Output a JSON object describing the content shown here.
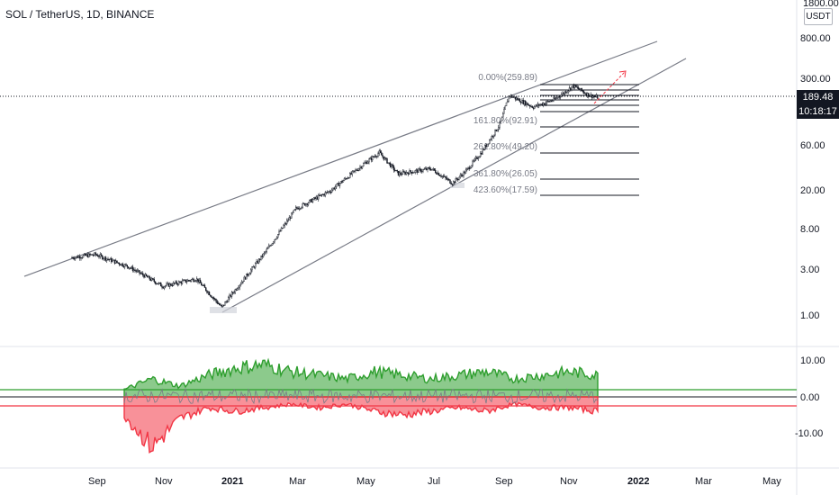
{
  "header": {
    "title": "SOL / TetherUS, 1D, BINANCE",
    "currency": "USDT"
  },
  "price_axis": {
    "top_label": "1800.00",
    "labels": [
      "800.00",
      "300.00",
      "60.00",
      "20.00",
      "8.00",
      "3.00",
      "1.00"
    ],
    "current_price": "189.48",
    "countdown": "10:18:17"
  },
  "indicator_axis": {
    "labels": [
      "10.00",
      "0.00",
      "-10.00"
    ]
  },
  "time_axis": {
    "labels": [
      "Sep",
      "Nov",
      "2021",
      "Mar",
      "May",
      "Jul",
      "Sep",
      "Nov",
      "2022",
      "Mar",
      "May"
    ]
  },
  "fibonacci": {
    "levels": [
      "0.00%(259.89)",
      "161.80%(92.91)",
      "261.80%(49.20)",
      "361.80%(26.05)",
      "423.60%(17.59)"
    ]
  },
  "colors": {
    "bull": "#089981",
    "bear": "#f23645",
    "indicator_green": "#2e9e2e",
    "indicator_red": "#f23645",
    "trendline": "#787b86"
  },
  "chart_data": {
    "type": "line",
    "title": "SOL / TetherUS, 1D, BINANCE",
    "scale": "log",
    "ylim": [
      0.7,
      1800
    ],
    "x": [
      "2020-08-11",
      "2020-09-01",
      "2020-10-01",
      "2020-11-01",
      "2020-12-01",
      "2020-12-24",
      "2021-01-01",
      "2021-02-01",
      "2021-03-01",
      "2021-04-01",
      "2021-05-01",
      "2021-05-15",
      "2021-06-01",
      "2021-07-01",
      "2021-07-20",
      "2021-08-01",
      "2021-08-15",
      "2021-09-01",
      "2021-09-09",
      "2021-10-01",
      "2021-10-20",
      "2021-11-06",
      "2021-11-20",
      "2021-11-28"
    ],
    "series": [
      {
        "values": [
          4.0,
          4.3,
          3.2,
          2.0,
          2.4,
          1.2,
          1.6,
          4.5,
          13.0,
          20.0,
          38.0,
          50.0,
          30.0,
          34.0,
          24.0,
          32.0,
          50.0,
          100.0,
          200.0,
          150.0,
          180.0,
          250.0,
          200.0,
          189.48
        ]
      }
    ],
    "indicator": {
      "ylim": [
        -18,
        12
      ],
      "levels": [
        2,
        0,
        -2
      ],
      "green_values": [
        2,
        5,
        3,
        6,
        8,
        9,
        7,
        6,
        5,
        7,
        6,
        5,
        6,
        7,
        5,
        6,
        7,
        6
      ],
      "red_values": [
        -5,
        -14,
        -6,
        -3,
        -4,
        -3,
        -2,
        -3,
        -2,
        -4,
        -5,
        -4,
        -3,
        -4,
        -2,
        -3,
        -3,
        -4
      ]
    }
  }
}
